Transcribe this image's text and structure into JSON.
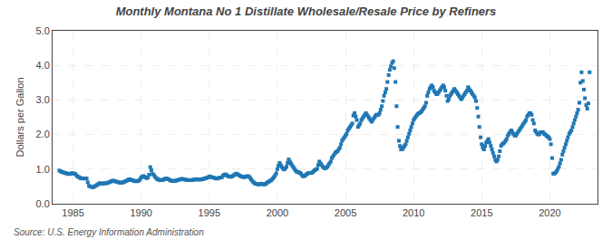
{
  "chart_data": {
    "type": "scatter",
    "title": "Monthly Montana No 1 Distillate Wholesale/Resale Price by Refiners",
    "ylabel": "Dollars per Gallon",
    "annotations": [
      "Source: U.S. Energy Information Administration"
    ],
    "marker": "square",
    "grid": true,
    "xlim": [
      1983.5,
      2023.5
    ],
    "ylim": [
      0.0,
      5.0
    ],
    "xticks": [
      1985,
      1990,
      1995,
      2000,
      2005,
      2010,
      2015,
      2020
    ],
    "yticks": [
      {
        "value": 0.0,
        "label": "0.0"
      },
      {
        "value": 1.0,
        "label": "1.0"
      },
      {
        "value": 2.0,
        "label": "2.0"
      },
      {
        "value": 3.0,
        "label": "3.0"
      },
      {
        "value": 4.0,
        "label": "4.0"
      },
      {
        "value": 5.0,
        "label": "5.0"
      }
    ],
    "x": [
      1984.0,
      1984.08,
      1984.17,
      1984.25,
      1984.33,
      1984.42,
      1984.5,
      1984.58,
      1984.67,
      1984.75,
      1984.83,
      1984.92,
      1985.0,
      1985.08,
      1985.17,
      1985.25,
      1985.33,
      1985.42,
      1985.5,
      1985.58,
      1985.67,
      1985.75,
      1985.83,
      1985.92,
      1986.0,
      1986.08,
      1986.17,
      1986.25,
      1986.33,
      1986.42,
      1986.5,
      1986.58,
      1986.67,
      1986.75,
      1986.83,
      1986.92,
      1987.0,
      1987.08,
      1987.17,
      1987.25,
      1987.33,
      1987.42,
      1987.5,
      1987.58,
      1987.67,
      1987.75,
      1987.83,
      1987.92,
      1988.0,
      1988.08,
      1988.17,
      1988.25,
      1988.33,
      1988.42,
      1988.5,
      1988.58,
      1988.67,
      1988.75,
      1988.83,
      1988.92,
      1989.0,
      1989.08,
      1989.17,
      1989.25,
      1989.33,
      1989.42,
      1989.5,
      1989.58,
      1989.67,
      1989.75,
      1989.83,
      1989.92,
      1990.0,
      1990.08,
      1990.17,
      1990.25,
      1990.33,
      1990.42,
      1990.5,
      1990.58,
      1990.67,
      1990.75,
      1990.83,
      1990.92,
      1991.0,
      1991.08,
      1991.17,
      1991.25,
      1991.33,
      1991.42,
      1991.5,
      1991.58,
      1991.67,
      1991.75,
      1991.83,
      1991.92,
      1992.0,
      1992.08,
      1992.17,
      1992.25,
      1992.33,
      1992.42,
      1992.5,
      1992.58,
      1992.67,
      1992.75,
      1992.83,
      1992.92,
      1993.0,
      1993.08,
      1993.17,
      1993.25,
      1993.33,
      1993.42,
      1993.5,
      1993.58,
      1993.67,
      1993.75,
      1993.83,
      1993.92,
      1994.0,
      1994.08,
      1994.17,
      1994.25,
      1994.33,
      1994.42,
      1994.5,
      1994.58,
      1994.67,
      1994.75,
      1994.83,
      1994.92,
      1995.0,
      1995.08,
      1995.17,
      1995.25,
      1995.33,
      1995.42,
      1995.5,
      1995.58,
      1995.67,
      1995.75,
      1995.83,
      1995.92,
      1996.0,
      1996.08,
      1996.17,
      1996.25,
      1996.33,
      1996.42,
      1996.5,
      1996.58,
      1996.67,
      1996.75,
      1996.83,
      1996.92,
      1997.0,
      1997.08,
      1997.17,
      1997.25,
      1997.33,
      1997.42,
      1997.5,
      1997.58,
      1997.67,
      1997.75,
      1997.83,
      1997.92,
      1998.0,
      1998.08,
      1998.17,
      1998.25,
      1998.33,
      1998.42,
      1998.5,
      1998.58,
      1998.67,
      1998.75,
      1998.83,
      1998.92,
      1999.0,
      1999.08,
      1999.17,
      1999.25,
      1999.33,
      1999.42,
      1999.5,
      1999.58,
      1999.67,
      1999.75,
      1999.83,
      1999.92,
      2000.0,
      2000.08,
      2000.17,
      2000.25,
      2000.33,
      2000.42,
      2000.5,
      2000.58,
      2000.67,
      2000.75,
      2000.83,
      2000.92,
      2001.0,
      2001.08,
      2001.17,
      2001.25,
      2001.33,
      2001.42,
      2001.5,
      2001.58,
      2001.67,
      2001.75,
      2001.83,
      2001.92,
      2002.0,
      2002.08,
      2002.17,
      2002.25,
      2002.33,
      2002.42,
      2002.5,
      2002.58,
      2002.67,
      2002.75,
      2002.83,
      2002.92,
      2003.0,
      2003.08,
      2003.17,
      2003.25,
      2003.33,
      2003.42,
      2003.5,
      2003.58,
      2003.67,
      2003.75,
      2003.83,
      2003.92,
      2004.0,
      2004.08,
      2004.17,
      2004.25,
      2004.33,
      2004.42,
      2004.5,
      2004.58,
      2004.67,
      2004.75,
      2004.83,
      2004.92,
      2005.0,
      2005.08,
      2005.17,
      2005.25,
      2005.33,
      2005.42,
      2005.5,
      2005.58,
      2005.67,
      2005.75,
      2005.83,
      2005.92,
      2006.0,
      2006.08,
      2006.17,
      2006.25,
      2006.33,
      2006.42,
      2006.5,
      2006.58,
      2006.67,
      2006.75,
      2006.83,
      2006.92,
      2007.0,
      2007.08,
      2007.17,
      2007.25,
      2007.33,
      2007.42,
      2007.5,
      2007.58,
      2007.67,
      2007.75,
      2007.83,
      2007.92,
      2008.0,
      2008.08,
      2008.17,
      2008.25,
      2008.33,
      2008.42,
      2008.5,
      2008.58,
      2008.67,
      2008.75,
      2008.83,
      2008.92,
      2009.0,
      2009.08,
      2009.17,
      2009.25,
      2009.33,
      2009.42,
      2009.5,
      2009.58,
      2009.67,
      2009.75,
      2009.83,
      2009.92,
      2010.0,
      2010.08,
      2010.17,
      2010.25,
      2010.33,
      2010.42,
      2010.5,
      2010.58,
      2010.67,
      2010.75,
      2010.83,
      2010.92,
      2011.0,
      2011.08,
      2011.17,
      2011.25,
      2011.33,
      2011.42,
      2011.5,
      2011.58,
      2011.67,
      2011.75,
      2011.83,
      2011.92,
      2012.0,
      2012.08,
      2012.17,
      2012.25,
      2012.33,
      2012.42,
      2012.5,
      2012.58,
      2012.67,
      2012.75,
      2012.83,
      2012.92,
      2013.0,
      2013.08,
      2013.17,
      2013.25,
      2013.33,
      2013.42,
      2013.5,
      2013.58,
      2013.67,
      2013.75,
      2013.83,
      2013.92,
      2014.0,
      2014.08,
      2014.17,
      2014.25,
      2014.33,
      2014.42,
      2014.5,
      2014.58,
      2014.67,
      2014.75,
      2014.83,
      2014.92,
      2015.0,
      2015.08,
      2015.17,
      2015.25,
      2015.33,
      2015.42,
      2015.5,
      2015.58,
      2015.67,
      2015.75,
      2015.83,
      2015.92,
      2016.0,
      2016.08,
      2016.17,
      2016.25,
      2016.33,
      2016.42,
      2016.5,
      2016.58,
      2016.67,
      2016.75,
      2016.83,
      2016.92,
      2017.0,
      2017.08,
      2017.17,
      2017.25,
      2017.33,
      2017.42,
      2017.5,
      2017.58,
      2017.67,
      2017.75,
      2017.83,
      2017.92,
      2018.0,
      2018.08,
      2018.17,
      2018.25,
      2018.33,
      2018.42,
      2018.5,
      2018.58,
      2018.67,
      2018.75,
      2018.83,
      2018.92,
      2019.0,
      2019.08,
      2019.17,
      2019.25,
      2019.33,
      2019.42,
      2019.5,
      2019.58,
      2019.67,
      2019.75,
      2019.83,
      2019.92,
      2020.0,
      2020.08,
      2020.17,
      2020.25,
      2020.33,
      2020.42,
      2020.5,
      2020.58,
      2020.67,
      2020.75,
      2020.83,
      2020.92,
      2021.0,
      2021.08,
      2021.17,
      2021.25,
      2021.33,
      2021.42,
      2021.5,
      2021.58,
      2021.67,
      2021.75,
      2021.83,
      2021.92,
      2022.0,
      2022.08,
      2022.17,
      2022.25,
      2022.33,
      2022.42,
      2022.5,
      2022.58,
      2022.67,
      2022.75,
      2022.83,
      2022.92
    ],
    "values": [
      0.96,
      0.94,
      0.92,
      0.91,
      0.9,
      0.89,
      0.88,
      0.87,
      0.86,
      0.86,
      0.87,
      0.88,
      0.88,
      0.87,
      0.86,
      0.82,
      0.79,
      0.77,
      0.75,
      0.74,
      0.73,
      0.73,
      0.73,
      0.73,
      0.73,
      0.62,
      0.52,
      0.5,
      0.49,
      0.48,
      0.48,
      0.5,
      0.52,
      0.54,
      0.56,
      0.59,
      0.59,
      0.58,
      0.58,
      0.59,
      0.59,
      0.59,
      0.6,
      0.61,
      0.62,
      0.64,
      0.65,
      0.67,
      0.66,
      0.65,
      0.64,
      0.63,
      0.62,
      0.61,
      0.61,
      0.61,
      0.62,
      0.63,
      0.65,
      0.66,
      0.68,
      0.7,
      0.71,
      0.69,
      0.68,
      0.67,
      0.66,
      0.65,
      0.65,
      0.66,
      0.67,
      0.7,
      0.76,
      0.78,
      0.8,
      0.78,
      0.76,
      0.74,
      0.76,
      0.84,
      1.06,
      0.97,
      0.86,
      0.84,
      0.79,
      0.75,
      0.72,
      0.7,
      0.69,
      0.68,
      0.68,
      0.69,
      0.7,
      0.72,
      0.73,
      0.72,
      0.71,
      0.69,
      0.67,
      0.66,
      0.66,
      0.66,
      0.66,
      0.67,
      0.68,
      0.69,
      0.7,
      0.71,
      0.72,
      0.71,
      0.7,
      0.7,
      0.69,
      0.68,
      0.68,
      0.68,
      0.68,
      0.69,
      0.69,
      0.7,
      0.71,
      0.7,
      0.7,
      0.7,
      0.7,
      0.7,
      0.71,
      0.72,
      0.73,
      0.74,
      0.75,
      0.76,
      0.79,
      0.78,
      0.77,
      0.76,
      0.75,
      0.74,
      0.73,
      0.73,
      0.74,
      0.75,
      0.76,
      0.76,
      0.81,
      0.83,
      0.85,
      0.84,
      0.81,
      0.79,
      0.78,
      0.78,
      0.79,
      0.81,
      0.83,
      0.86,
      0.87,
      0.85,
      0.83,
      0.81,
      0.79,
      0.78,
      0.77,
      0.77,
      0.78,
      0.79,
      0.8,
      0.78,
      0.75,
      0.7,
      0.65,
      0.62,
      0.59,
      0.58,
      0.57,
      0.56,
      0.56,
      0.57,
      0.58,
      0.57,
      0.56,
      0.56,
      0.58,
      0.61,
      0.63,
      0.65,
      0.67,
      0.69,
      0.73,
      0.77,
      0.82,
      0.88,
      1.0,
      1.1,
      1.18,
      1.12,
      1.06,
      1.01,
      0.99,
      1.02,
      1.07,
      1.18,
      1.28,
      1.22,
      1.16,
      1.11,
      1.06,
      1.01,
      0.96,
      0.93,
      0.91,
      0.91,
      0.89,
      0.86,
      0.81,
      0.79,
      0.81,
      0.83,
      0.86,
      0.88,
      0.89,
      0.89,
      0.89,
      0.91,
      0.94,
      0.97,
      0.99,
      1.01,
      1.12,
      1.22,
      1.17,
      1.12,
      1.07,
      1.04,
      1.02,
      1.04,
      1.07,
      1.12,
      1.17,
      1.22,
      1.32,
      1.37,
      1.42,
      1.47,
      1.5,
      1.52,
      1.57,
      1.62,
      1.72,
      1.82,
      1.87,
      1.92,
      1.97,
      2.02,
      2.12,
      2.17,
      2.22,
      2.27,
      2.32,
      2.55,
      2.62,
      2.52,
      2.42,
      2.22,
      2.27,
      2.32,
      2.42,
      2.47,
      2.52,
      2.57,
      2.62,
      2.57,
      2.52,
      2.47,
      2.42,
      2.37,
      2.42,
      2.47,
      2.52,
      2.57,
      2.57,
      2.57,
      2.62,
      2.72,
      2.82,
      2.97,
      3.12,
      3.22,
      3.32,
      3.52,
      3.72,
      3.87,
      3.97,
      4.07,
      4.12,
      3.92,
      3.52,
      2.82,
      2.22,
      1.82,
      1.67,
      1.57,
      1.57,
      1.62,
      1.67,
      1.72,
      1.82,
      1.92,
      2.02,
      2.12,
      2.22,
      2.32,
      2.42,
      2.47,
      2.52,
      2.57,
      2.6,
      2.62,
      2.64,
      2.67,
      2.72,
      2.77,
      2.82,
      2.92,
      3.12,
      3.22,
      3.32,
      3.37,
      3.42,
      3.37,
      3.27,
      3.22,
      3.17,
      3.17,
      3.22,
      3.27,
      3.32,
      3.37,
      3.42,
      3.37,
      3.27,
      3.12,
      2.97,
      3.02,
      3.12,
      3.17,
      3.22,
      3.27,
      3.32,
      3.27,
      3.22,
      3.17,
      3.12,
      3.07,
      3.02,
      3.07,
      3.12,
      3.17,
      3.22,
      3.27,
      3.37,
      3.32,
      3.27,
      3.22,
      3.17,
      3.12,
      3.07,
      2.97,
      2.77,
      2.52,
      2.22,
      1.92,
      1.72,
      1.62,
      1.57,
      1.67,
      1.77,
      1.82,
      1.87,
      1.77,
      1.67,
      1.57,
      1.47,
      1.37,
      1.27,
      1.22,
      1.27,
      1.37,
      1.52,
      1.67,
      1.72,
      1.74,
      1.77,
      1.82,
      1.87,
      1.97,
      2.02,
      2.07,
      2.12,
      2.07,
      2.02,
      1.97,
      1.97,
      2.02,
      2.07,
      2.12,
      2.17,
      2.22,
      2.27,
      2.32,
      2.37,
      2.42,
      2.52,
      2.57,
      2.62,
      2.62,
      2.57,
      2.42,
      2.32,
      2.12,
      2.07,
      2.02,
      2.0,
      2.02,
      2.07,
      2.07,
      2.07,
      2.02,
      2.0,
      1.97,
      1.94,
      1.92,
      1.87,
      1.72,
      1.32,
      0.87,
      0.87,
      0.9,
      0.94,
      1.0,
      1.07,
      1.17,
      1.27,
      1.42,
      1.52,
      1.62,
      1.72,
      1.82,
      1.92,
      2.02,
      2.07,
      2.12,
      2.22,
      2.32,
      2.42,
      2.52,
      2.62,
      2.72,
      2.92,
      3.5,
      3.8,
      3.55,
      3.3,
      3.05,
      2.85,
      2.75,
      2.9,
      3.8
    ]
  }
}
